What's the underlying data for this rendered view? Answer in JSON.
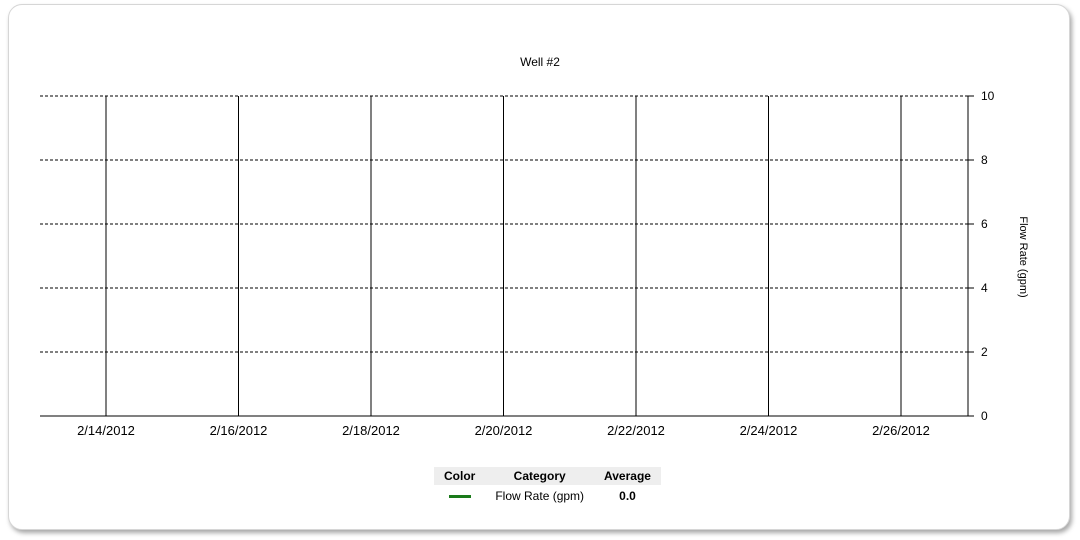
{
  "chart_data": {
    "type": "line",
    "title": "Well #2",
    "xlabel": "",
    "ylabel": "Flow Rate (gpm)",
    "x_ticks": [
      "2/14/2012",
      "2/16/2012",
      "2/18/2012",
      "2/20/2012",
      "2/22/2012",
      "2/24/2012",
      "2/26/2012"
    ],
    "ylim": [
      0,
      10
    ],
    "y_ticks": [
      0,
      2,
      4,
      6,
      8,
      10
    ],
    "y_axis_side": "right",
    "grid": true,
    "series": [
      {
        "name": "Flow Rate (gpm)",
        "color": "#1a7a1a",
        "values": []
      }
    ]
  },
  "legend": {
    "headers": {
      "color": "Color",
      "category": "Category",
      "average": "Average"
    },
    "rows": [
      {
        "color": "#1a7a1a",
        "category": "Flow Rate (gpm)",
        "average": "0.0"
      }
    ]
  }
}
